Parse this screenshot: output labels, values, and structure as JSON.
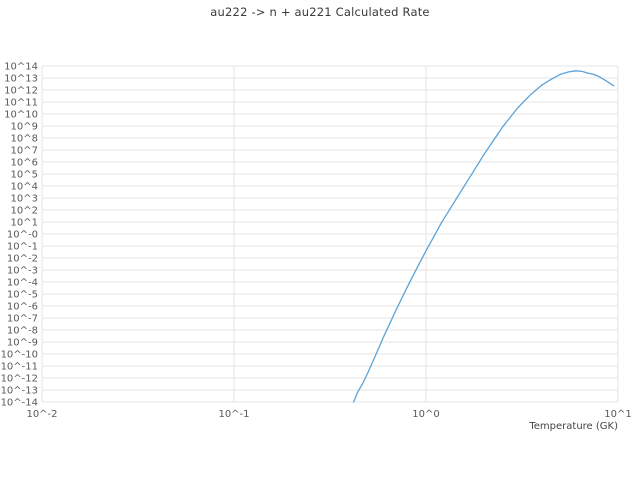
{
  "title": "au222 -> n + au221 Calculated Rate",
  "style": {
    "line_color": "#5ba3d9",
    "grid_color": "#e5e5e5",
    "tick_label_color": "#595959",
    "plot_bg": "#ffffff"
  },
  "x_axis": {
    "label": "Temperature (GK)",
    "tick_labels": [
      "10^-2",
      "10^-1",
      "10^0",
      "10^1"
    ],
    "tick_log10": [
      -2,
      -1,
      0,
      1
    ]
  },
  "y_axis": {
    "label": "",
    "tick_labels": [
      "10^14",
      "10^13",
      "10^12",
      "10^11",
      "10^10",
      "10^9",
      "10^8",
      "10^7",
      "10^6",
      "10^5",
      "10^4",
      "10^3",
      "10^2",
      "10^1",
      "10^-0",
      "10^-1",
      "10^-2",
      "10^-3",
      "10^-4",
      "10^-5",
      "10^-6",
      "10^-7",
      "10^-8",
      "10^-9",
      "10^-10",
      "10^-11",
      "10^-12",
      "10^-13",
      "10^-14"
    ],
    "tick_log10": [
      14,
      13,
      12,
      11,
      10,
      9,
      8,
      7,
      6,
      5,
      4,
      3,
      2,
      1,
      0,
      -1,
      -2,
      -3,
      -4,
      -5,
      -6,
      -7,
      -8,
      -9,
      -10,
      -11,
      -12,
      -13,
      -14
    ]
  },
  "chart_data": {
    "type": "line",
    "title": "au222 -> n + au221 Calculated Rate",
    "xlabel": "Temperature (GK)",
    "ylabel": "",
    "xscale": "log",
    "yscale": "log",
    "xlim": [
      0.01,
      10
    ],
    "ylim_log10": [
      -14,
      14
    ],
    "legend": "none",
    "grid": "on",
    "series_name": "calculated rate",
    "x": [
      0.42,
      0.44,
      0.47,
      0.5,
      0.55,
      0.6,
      0.7,
      0.8,
      0.9,
      1.0,
      1.2,
      1.5,
      2.0,
      2.5,
      3.0,
      3.5,
      4.0,
      4.5,
      5.0,
      5.5,
      6.0,
      6.5,
      7.0,
      7.5,
      8.0,
      8.5,
      9.0,
      9.5
    ],
    "log10_y": [
      -14.0,
      -13.2,
      -12.4,
      -11.5,
      -10.0,
      -8.6,
      -6.3,
      -4.4,
      -2.8,
      -1.4,
      0.9,
      3.4,
      6.6,
      8.9,
      10.5,
      11.6,
      12.4,
      12.9,
      13.3,
      13.5,
      13.6,
      13.55,
      13.4,
      13.3,
      13.1,
      12.85,
      12.6,
      12.35
    ]
  }
}
